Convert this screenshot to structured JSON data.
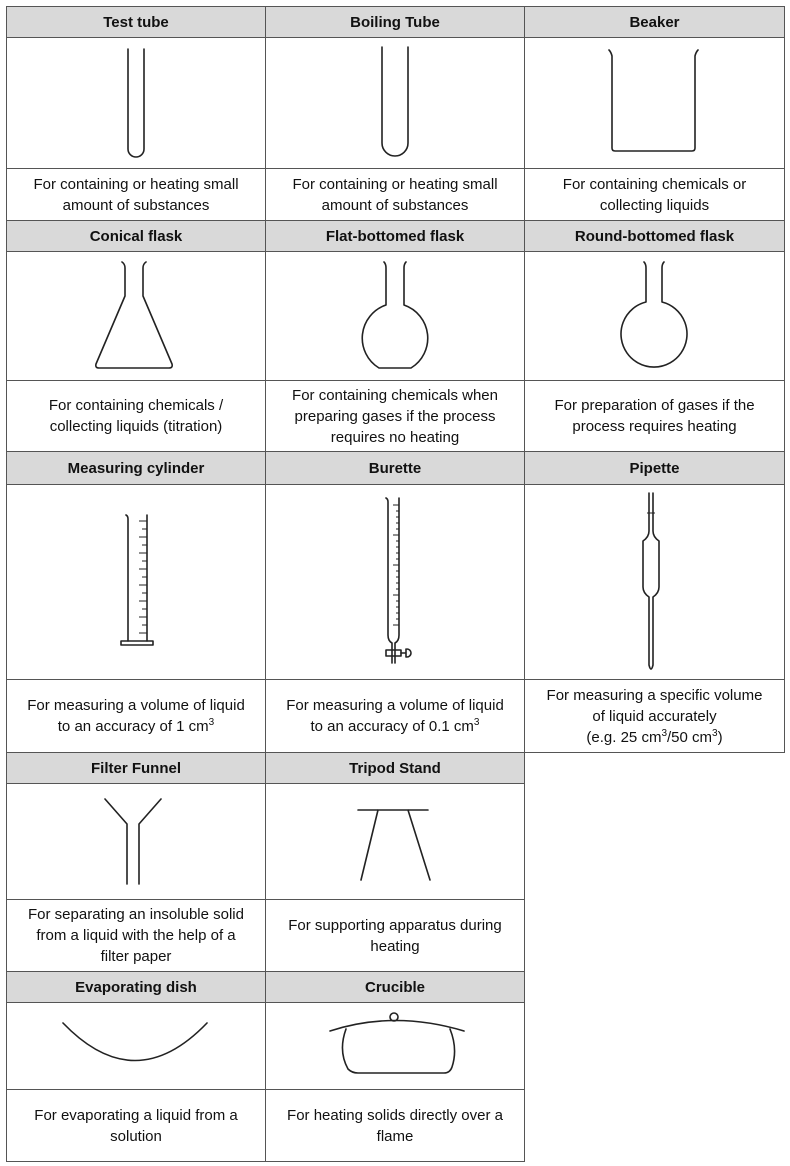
{
  "apparatus": [
    {
      "name": "Test tube",
      "icon": "test-tube-icon",
      "desc": [
        "For containing or heating small",
        "amount of substances"
      ]
    },
    {
      "name": "Boiling Tube",
      "icon": "boiling-tube-icon",
      "desc": [
        "For containing or heating small",
        "amount of substances"
      ]
    },
    {
      "name": "Beaker",
      "icon": "beaker-icon",
      "desc": [
        "For containing chemicals or",
        "collecting liquids"
      ]
    },
    {
      "name": "Conical flask",
      "icon": "conical-flask-icon",
      "desc": [
        "For containing chemicals /",
        "collecting liquids (titration)"
      ]
    },
    {
      "name": "Flat-bottomed flask",
      "icon": "flat-bottomed-flask-icon",
      "desc": [
        "For containing chemicals when",
        "preparing gases if the process",
        "requires no heating"
      ]
    },
    {
      "name": "Round-bottomed flask",
      "icon": "round-bottomed-flask-icon",
      "desc": [
        "For preparation of gases if the",
        "process requires heating"
      ]
    },
    {
      "name": "Measuring cylinder",
      "icon": "measuring-cylinder-icon",
      "desc": [
        "For measuring a volume of liquid",
        "to an accuracy of 1 cm"
      ],
      "sup": "3"
    },
    {
      "name": "Burette",
      "icon": "burette-icon",
      "desc": [
        "For measuring a volume of liquid",
        "to an accuracy of 0.1 cm"
      ],
      "sup": "3"
    },
    {
      "name": "Pipette",
      "icon": "pipette-icon",
      "desc": [
        "For measuring a specific volume",
        "of liquid accurately"
      ],
      "extra": {
        "pre": "(e.g. 25 cm",
        "sup1": "3",
        "mid": "/50 cm",
        "sup2": "3",
        "post": ")"
      }
    },
    {
      "name": "Filter Funnel",
      "icon": "filter-funnel-icon",
      "desc": [
        "For separating an insoluble solid",
        "from a liquid with the help of a",
        "filter paper"
      ]
    },
    {
      "name": "Tripod Stand",
      "icon": "tripod-stand-icon",
      "desc": [
        "For supporting apparatus during",
        "heating"
      ]
    },
    {
      "name": "Evaporating dish",
      "icon": "evaporating-dish-icon",
      "desc": [
        "For evaporating a liquid from a",
        "solution"
      ]
    },
    {
      "name": "Crucible",
      "icon": "crucible-icon",
      "desc": [
        "For heating solids directly over a",
        "flame"
      ]
    }
  ]
}
